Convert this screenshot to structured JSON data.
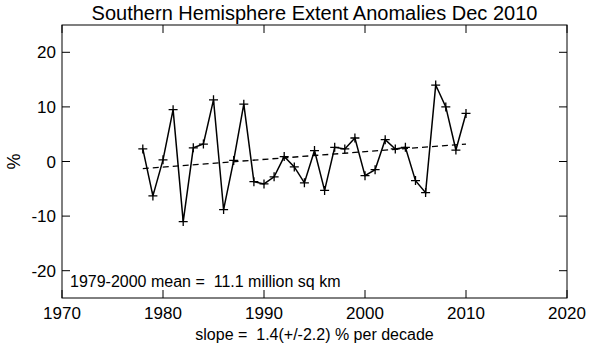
{
  "chart_data": {
    "type": "line",
    "title": "Southern Hemisphere Extent Anomalies Dec 2010",
    "y_label": "%",
    "x_label": "slope =  1.4(+/-2.2) % per decade",
    "annotation": "1979-2000 mean =  11.1 million sq km",
    "x": [
      1978,
      1979,
      1980,
      1981,
      1982,
      1983,
      1984,
      1985,
      1986,
      1987,
      1988,
      1989,
      1990,
      1991,
      1992,
      1993,
      1994,
      1995,
      1996,
      1997,
      1998,
      1999,
      2000,
      2001,
      2002,
      2003,
      2004,
      2005,
      2006,
      2007,
      2008,
      2009,
      2010
    ],
    "values": [
      2.3,
      -6.3,
      0.3,
      9.5,
      -11.0,
      2.5,
      3.2,
      11.3,
      -8.8,
      0.2,
      10.5,
      -3.7,
      -4.1,
      -2.8,
      0.9,
      -1.0,
      -3.9,
      2.0,
      -5.3,
      2.6,
      2.3,
      4.3,
      -2.6,
      -1.5,
      4.0,
      2.3,
      2.6,
      -3.5,
      -5.7,
      14.0,
      10.0,
      2.1,
      8.8
    ],
    "color": "#000000",
    "marker": "plus",
    "line_style": "solid",
    "trend": {
      "x": [
        1978,
        2010
      ],
      "values": [
        -1.3,
        3.2
      ],
      "line_style": "dashed",
      "color": "#000000"
    },
    "xlim": [
      1970,
      2020
    ],
    "xticks": [
      1970,
      1980,
      1990,
      2000,
      2010,
      2020
    ],
    "ylim": [
      -25,
      25
    ],
    "yticks": [
      -20,
      -10,
      0,
      10,
      20
    ],
    "grid": false
  }
}
